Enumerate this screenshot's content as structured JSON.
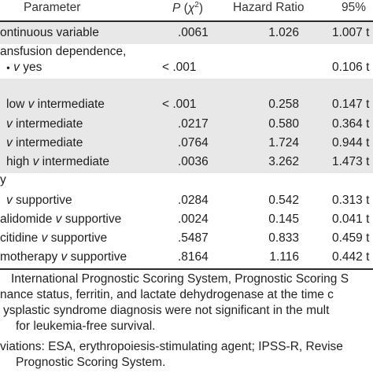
{
  "table": {
    "headers": {
      "parameter": "Parameter",
      "p_value": "P (χ²)",
      "hazard_ratio": "Hazard Ratio",
      "ci": "95%"
    },
    "rows": [
      {
        "parameter": "ontinuous variable",
        "p": ".0061",
        "hr": "1.026",
        "ci": "1.007 t",
        "shaded": true
      },
      {
        "parameter": "ansfusion dependence,",
        "p": "",
        "hr": "",
        "ci": "",
        "shaded": false
      },
      {
        "parameter": "v yes",
        "p": "< .001",
        "hr": "",
        "ci": "0.106 t",
        "shaded": false
      },
      {
        "parameter": "",
        "p": "",
        "hr": "",
        "ci": "",
        "shaded": true
      },
      {
        "parameter": "low v intermediate",
        "p": "< .001",
        "hr": "0.258",
        "ci": "0.147 t",
        "shaded": true
      },
      {
        "parameter": "v intermediate",
        "p": ".0217",
        "hr": "0.580",
        "ci": "0.364 t",
        "shaded": true
      },
      {
        "parameter": "v intermediate",
        "p": ".0764",
        "hr": "1.724",
        "ci": "0.944 t",
        "shaded": true
      },
      {
        "parameter": "high v intermediate",
        "p": ".0036",
        "hr": "3.262",
        "ci": "1.473 t",
        "shaded": true
      },
      {
        "parameter": "y",
        "p": "",
        "hr": "",
        "ci": "",
        "shaded": false
      },
      {
        "parameter": "v supportive",
        "p": ".0284",
        "hr": "0.542",
        "ci": "0.313 t",
        "shaded": false
      },
      {
        "parameter": "alidomide v supportive",
        "p": ".0024",
        "hr": "0.145",
        "ci": "0.041 t",
        "shaded": false
      },
      {
        "parameter": "citidine v supportive",
        "p": ".5487",
        "hr": "0.833",
        "ci": "0.459 t",
        "shaded": false
      },
      {
        "parameter": "motherapy v supportive",
        "p": ".8164",
        "hr": "1.116",
        "ci": "0.442 t",
        "shaded": false
      }
    ]
  },
  "footnotes": [
    "International Prognostic Scoring System, Prognostic Scoring S",
    "nance status, ferritin, and lactate dehydrogenase at the time c",
    "ysplastic syndrome diagnosis were not significant in the mult",
    " for leukemia-free survival.",
    "viations: ESA, erythropoiesis-stimulating agent; IPSS-R, Revise",
    "Prognostic Scoring System."
  ]
}
